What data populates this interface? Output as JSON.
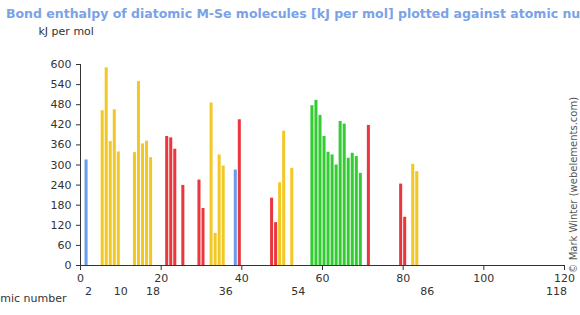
{
  "chart_data": {
    "type": "bar",
    "title": "Bond enthalpy of diatomic M-Se molecules [kJ per mol] plotted against atomic number",
    "ylabel": "kJ per mol",
    "xlabel": "atomic number",
    "credit": "© Mark Winter (webelements.com)",
    "x": [
      1,
      5,
      6,
      7,
      8,
      9,
      13,
      14,
      15,
      16,
      17,
      21,
      22,
      23,
      25,
      29,
      30,
      32,
      33,
      34,
      35,
      38,
      39,
      47,
      48,
      49,
      50,
      52,
      57,
      58,
      59,
      60,
      61,
      62,
      63,
      64,
      65,
      66,
      67,
      68,
      69,
      71,
      79,
      80,
      82,
      83
    ],
    "values": [
      315,
      462,
      590,
      370,
      465,
      339,
      337,
      549,
      363,
      371,
      322,
      385,
      381,
      347,
      239,
      255,
      170,
      485,
      96,
      330,
      297,
      285,
      435,
      201,
      128,
      247,
      401,
      290,
      477,
      493,
      448,
      385,
      338,
      330,
      300,
      430,
      422,
      320,
      335,
      325,
      275,
      418,
      243,
      144,
      302,
      280
    ],
    "colors": [
      "#6a9be8",
      "#f2c824",
      "#f2c824",
      "#f2c824",
      "#f2c824",
      "#f2c824",
      "#f2c824",
      "#f2c824",
      "#f2c824",
      "#f2c824",
      "#f2c824",
      "#e8383d",
      "#e8383d",
      "#e8383d",
      "#e8383d",
      "#e8383d",
      "#e8383d",
      "#f2c824",
      "#f2c824",
      "#f2c824",
      "#f2c824",
      "#6a9be8",
      "#e8383d",
      "#e8383d",
      "#e8383d",
      "#f2c824",
      "#f2c824",
      "#f2c824",
      "#33cc33",
      "#33cc33",
      "#33cc33",
      "#33cc33",
      "#33cc33",
      "#33cc33",
      "#33cc33",
      "#33cc33",
      "#33cc33",
      "#33cc33",
      "#33cc33",
      "#33cc33",
      "#33cc33",
      "#e8383d",
      "#e8383d",
      "#e8383d",
      "#f2c824",
      "#f2c824"
    ],
    "xlim": [
      0,
      120
    ],
    "xticks": [
      0,
      20,
      40,
      60,
      80,
      100,
      120
    ],
    "noble_gas_ticks": [
      2,
      10,
      18,
      36,
      54,
      86,
      118
    ],
    "ylim": [
      0,
      600
    ],
    "yticks": [
      0,
      60,
      120,
      180,
      240,
      300,
      360,
      420,
      480,
      540,
      600
    ],
    "grid": false
  }
}
